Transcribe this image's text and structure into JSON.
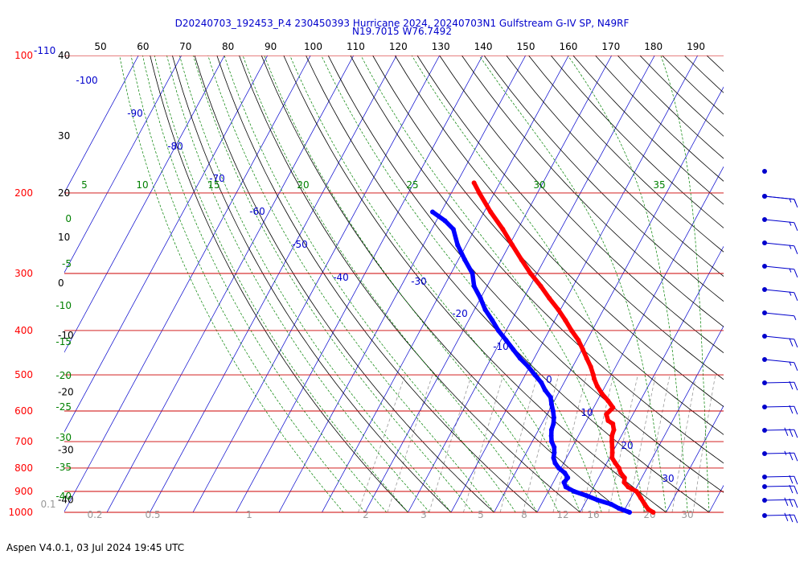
{
  "header": {
    "title_line1": "D20240703_192453_P.4 230450393 Hurricane 2024, 20240703N1 Gulfstream G-IV SP, N49RF",
    "title_line2": "N19.7015 W76.7492"
  },
  "footer": {
    "text": "Aspen V4.0.1, 03 Jul 2024  19:45 UTC"
  },
  "colors": {
    "temperature": "#ff0000",
    "dewpoint": "#0000ff",
    "isobar": "#cc0000",
    "isotherm": "#0000cc",
    "dry_adiabat": "#000000",
    "moist_adiabat": "#008000",
    "mixing_ratio": "#999999",
    "wind_barb": "#0000cc"
  },
  "chart_data": {
    "type": "skew-t log-p",
    "pressure_range_hpa": [
      1000,
      100
    ],
    "pressure_levels": [
      {
        "p": 1000,
        "label": "1000"
      },
      {
        "p": 900,
        "label": "900"
      },
      {
        "p": 800,
        "label": "800"
      },
      {
        "p": 700,
        "label": "700"
      },
      {
        "p": 600,
        "label": "600"
      },
      {
        "p": 500,
        "label": "500"
      },
      {
        "p": 400,
        "label": "400"
      },
      {
        "p": 300,
        "label": "300"
      },
      {
        "p": 200,
        "label": "200"
      },
      {
        "p": 100,
        "label": "100"
      }
    ],
    "top_pressure_suffix": "-110",
    "left_temperature_labels": [
      {
        "p": 100,
        "label": "40"
      },
      {
        "p": 150,
        "label": "30"
      },
      {
        "p": 200,
        "label": "20"
      },
      {
        "p": 250,
        "label": "10"
      },
      {
        "p": 315,
        "label": "0"
      },
      {
        "p": 410,
        "label": "-10"
      },
      {
        "p": 545,
        "label": "-20"
      },
      {
        "p": 730,
        "label": "-30"
      },
      {
        "p": 940,
        "label": "-40"
      }
    ],
    "top_dry_adiabat_labels": [
      "50",
      "60",
      "70",
      "80",
      "90",
      "100",
      "110",
      "120",
      "130",
      "140",
      "150",
      "160",
      "170",
      "180",
      "190"
    ],
    "isotherm_labels": [
      {
        "t": -100,
        "label": "-100"
      },
      {
        "t": -90,
        "label": "-90"
      },
      {
        "t": -80,
        "label": "-80"
      },
      {
        "t": -70,
        "label": "-70"
      },
      {
        "t": -60,
        "label": "-60"
      },
      {
        "t": -50,
        "label": "-50"
      },
      {
        "t": -40,
        "label": "-40"
      },
      {
        "t": -30,
        "label": "-30"
      },
      {
        "t": -20,
        "label": "-20"
      },
      {
        "t": -10,
        "label": "-10"
      },
      {
        "t": 0,
        "label": "0"
      },
      {
        "t": 10,
        "label": "10"
      },
      {
        "t": 20,
        "label": "20"
      },
      {
        "t": 30,
        "label": "30"
      }
    ],
    "moist_adiabat_labels_top": [
      "5",
      "10",
      "15",
      "20",
      "25",
      "30",
      "35"
    ],
    "moist_adiabat_labels_left": [
      "0",
      "-5",
      "-10",
      "-15",
      "-20",
      "-25",
      "-30",
      "-35",
      "-40"
    ],
    "mixing_ratio_labels": [
      "0.1",
      "0.2",
      "0.5",
      "1",
      "2",
      "3",
      "5",
      "8",
      "12",
      "16",
      "20",
      "30",
      "40"
    ],
    "temperature_profile": [
      {
        "p": 1000,
        "t": 27.0
      },
      {
        "p": 985,
        "t": 25.5
      },
      {
        "p": 960,
        "t": 24.0
      },
      {
        "p": 930,
        "t": 22.3
      },
      {
        "p": 900,
        "t": 20.5
      },
      {
        "p": 880,
        "t": 18.0
      },
      {
        "p": 860,
        "t": 16.5
      },
      {
        "p": 840,
        "t": 16.0
      },
      {
        "p": 820,
        "t": 14.5
      },
      {
        "p": 800,
        "t": 13.5
      },
      {
        "p": 780,
        "t": 12.0
      },
      {
        "p": 760,
        "t": 10.6
      },
      {
        "p": 740,
        "t": 10.0
      },
      {
        "p": 720,
        "t": 9.3
      },
      {
        "p": 700,
        "t": 8.5
      },
      {
        "p": 680,
        "t": 7.8
      },
      {
        "p": 660,
        "t": 7.5
      },
      {
        "p": 640,
        "t": 6.5
      },
      {
        "p": 630,
        "t": 5.0
      },
      {
        "p": 610,
        "t": 3.8
      },
      {
        "p": 590,
        "t": 4.5
      },
      {
        "p": 570,
        "t": 2.5
      },
      {
        "p": 550,
        "t": 0.2
      },
      {
        "p": 530,
        "t": -1.8
      },
      {
        "p": 510,
        "t": -3.5
      },
      {
        "p": 500,
        "t": -4.2
      },
      {
        "p": 480,
        "t": -5.8
      },
      {
        "p": 460,
        "t": -7.8
      },
      {
        "p": 440,
        "t": -9.8
      },
      {
        "p": 420,
        "t": -12.0
      },
      {
        "p": 400,
        "t": -14.8
      },
      {
        "p": 380,
        "t": -17.5
      },
      {
        "p": 360,
        "t": -20.5
      },
      {
        "p": 340,
        "t": -24.0
      },
      {
        "p": 320,
        "t": -27.5
      },
      {
        "p": 300,
        "t": -31.5
      },
      {
        "p": 280,
        "t": -35.3
      },
      {
        "p": 260,
        "t": -39.3
      },
      {
        "p": 240,
        "t": -43.5
      },
      {
        "p": 220,
        "t": -48.5
      },
      {
        "p": 200,
        "t": -53.5
      },
      {
        "p": 190,
        "t": -56.0
      }
    ],
    "dewpoint_profile": [
      {
        "p": 1000,
        "t": 21.5
      },
      {
        "p": 990,
        "t": 20.0
      },
      {
        "p": 980,
        "t": 18.5
      },
      {
        "p": 960,
        "t": 16.2
      },
      {
        "p": 940,
        "t": 12.5
      },
      {
        "p": 920,
        "t": 9.5
      },
      {
        "p": 900,
        "t": 6.0
      },
      {
        "p": 880,
        "t": 3.5
      },
      {
        "p": 860,
        "t": 2.5
      },
      {
        "p": 840,
        "t": 2.8
      },
      {
        "p": 820,
        "t": 1.5
      },
      {
        "p": 800,
        "t": -0.5
      },
      {
        "p": 780,
        "t": -2.0
      },
      {
        "p": 760,
        "t": -3.0
      },
      {
        "p": 740,
        "t": -3.5
      },
      {
        "p": 720,
        "t": -4.2
      },
      {
        "p": 700,
        "t": -5.5
      },
      {
        "p": 680,
        "t": -6.3
      },
      {
        "p": 660,
        "t": -7.0
      },
      {
        "p": 640,
        "t": -7.3
      },
      {
        "p": 620,
        "t": -8.0
      },
      {
        "p": 600,
        "t": -9.0
      },
      {
        "p": 580,
        "t": -10.2
      },
      {
        "p": 560,
        "t": -11.3
      },
      {
        "p": 540,
        "t": -13.5
      },
      {
        "p": 520,
        "t": -15.3
      },
      {
        "p": 500,
        "t": -17.8
      },
      {
        "p": 480,
        "t": -20.3
      },
      {
        "p": 460,
        "t": -23.3
      },
      {
        "p": 440,
        "t": -26.0
      },
      {
        "p": 420,
        "t": -28.8
      },
      {
        "p": 400,
        "t": -31.8
      },
      {
        "p": 380,
        "t": -34.5
      },
      {
        "p": 360,
        "t": -37.5
      },
      {
        "p": 340,
        "t": -40.0
      },
      {
        "p": 320,
        "t": -43.0
      },
      {
        "p": 300,
        "t": -45.0
      },
      {
        "p": 280,
        "t": -48.5
      },
      {
        "p": 260,
        "t": -52.0
      },
      {
        "p": 240,
        "t": -55.0
      },
      {
        "p": 230,
        "t": -58.0
      },
      {
        "p": 220,
        "t": -62.0
      }
    ],
    "wind_barbs": [
      {
        "p": 1000,
        "speed_kt": 30
      },
      {
        "p": 960,
        "speed_kt": 30
      },
      {
        "p": 900,
        "speed_kt": 20
      },
      {
        "p": 860,
        "speed_kt": 20
      },
      {
        "p": 800,
        "speed_kt": 25
      },
      {
        "p": 750,
        "speed_kt": 30
      },
      {
        "p": 700,
        "speed_kt": 20
      },
      {
        "p": 640,
        "speed_kt": 20
      },
      {
        "p": 600,
        "speed_kt": 15
      },
      {
        "p": 520,
        "speed_kt": 20
      },
      {
        "p": 460,
        "speed_kt": 5
      },
      {
        "p": 400,
        "speed_kt": 15
      },
      {
        "p": 350,
        "speed_kt": 15
      },
      {
        "p": 310,
        "speed_kt": 15
      },
      {
        "p": 280,
        "speed_kt": 15
      },
      {
        "p": 250,
        "speed_kt": 15
      },
      {
        "p": 215,
        "speed_kt": 5
      },
      {
        "p": 200,
        "speed_kt": 0
      }
    ]
  }
}
